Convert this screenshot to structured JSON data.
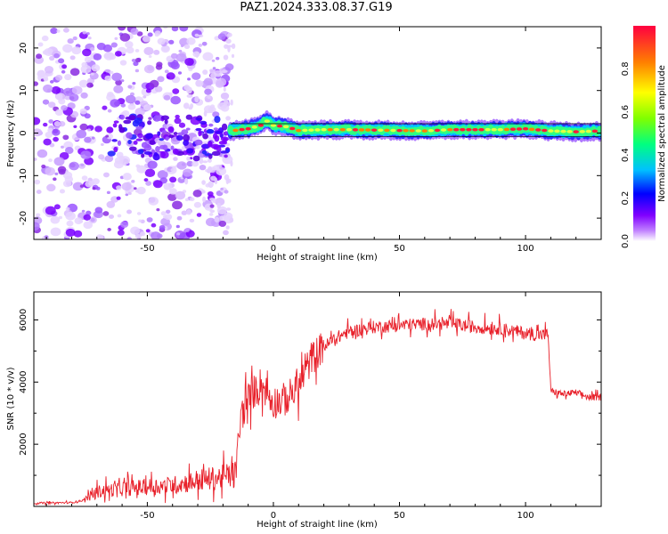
{
  "page": {
    "title": "PAZ1.2024.333.08.37.G19"
  },
  "chart_data": [
    {
      "type": "heatmap",
      "title": "",
      "xlabel": "Height of straight line (km)",
      "ylabel": "Frequency (Hz)",
      "xlim": [
        -95,
        130
      ],
      "ylim": [
        -25,
        25
      ],
      "x_ticks": [
        -50,
        0,
        50,
        100
      ],
      "y_ticks": [
        -20,
        -10,
        0,
        10,
        20
      ],
      "colorbar": {
        "label": "Normalized spectral amplitude",
        "range": [
          0,
          1
        ],
        "ticks": [
          "0.0",
          "0.2",
          "0.4",
          "0.6",
          "0.8"
        ],
        "colors": [
          "#ffffff",
          "#c080ff",
          "#8000ff",
          "#0000ff",
          "#00c0ff",
          "#00ff80",
          "#80ff00",
          "#ffff00",
          "#ff8000",
          "#ff0040"
        ]
      },
      "ridge": {
        "description_free": true,
        "x": [
          -17,
          -10,
          -5,
          -3,
          0,
          5,
          10,
          20,
          30,
          40,
          50,
          60,
          70,
          80,
          90,
          100,
          110,
          120,
          130
        ],
        "frequency": [
          0.5,
          1.0,
          1.8,
          3.0,
          1.8,
          1.5,
          0.6,
          0.8,
          0.8,
          0.7,
          0.6,
          0.5,
          0.8,
          0.8,
          0.8,
          1.0,
          0.5,
          0.3,
          0.5
        ]
      }
    },
    {
      "type": "line",
      "title": "",
      "xlabel": "Height of straight line (km)",
      "ylabel": "SNR (10 * v/v)",
      "xlim": [
        -95,
        130
      ],
      "ylim": [
        0,
        6900
      ],
      "x_ticks": [
        -50,
        0,
        50,
        100
      ],
      "y_ticks": [
        2000,
        4000,
        6000
      ],
      "line_color": "#e8202a",
      "series": [
        {
          "x": [
            -95,
            -80,
            -75,
            -70,
            -60,
            -50,
            -40,
            -30,
            -20,
            -15,
            -13,
            -10,
            -5,
            0,
            5,
            10,
            15,
            20,
            25,
            30,
            40,
            50,
            60,
            70,
            80,
            90,
            100,
            105,
            109,
            110,
            115,
            120,
            125,
            130
          ],
          "values": [
            100,
            120,
            200,
            450,
            550,
            600,
            650,
            800,
            900,
            1000,
            2800,
            3400,
            3900,
            3300,
            3400,
            3800,
            4700,
            5100,
            5400,
            5600,
            5750,
            5800,
            5850,
            5850,
            5750,
            5700,
            5550,
            5500,
            5500,
            3700,
            3600,
            3650,
            3500,
            3500
          ]
        }
      ]
    }
  ]
}
